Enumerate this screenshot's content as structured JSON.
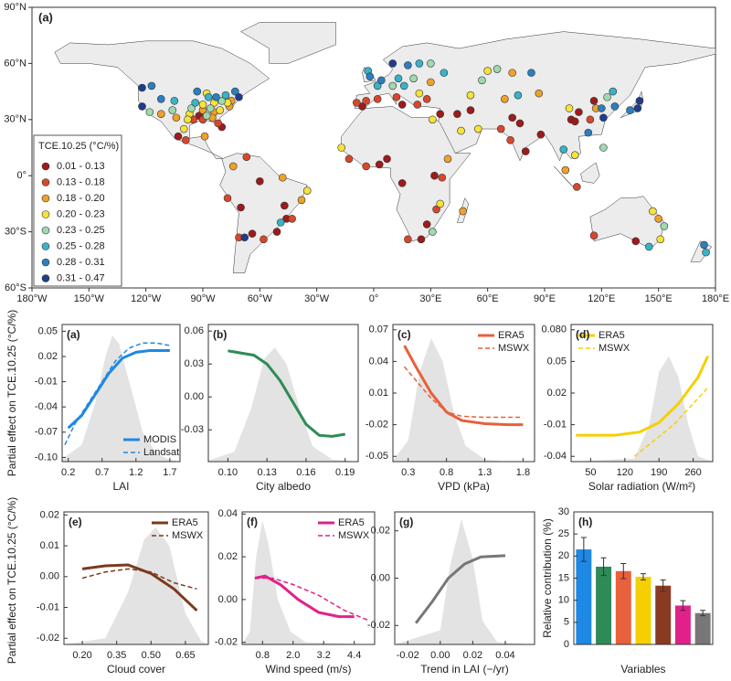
{
  "chart_data": [
    {
      "type": "map",
      "panel_label": "(a)",
      "legend_title": "TCE.10.25 (°C/%)",
      "xlim": [
        -180,
        180
      ],
      "ylim": [
        -60,
        90
      ],
      "xticks": [
        {
          "value": -180,
          "label": "180°W"
        },
        {
          "value": -150,
          "label": "150°W"
        },
        {
          "value": -120,
          "label": "120°W"
        },
        {
          "value": -90,
          "label": "90°W"
        },
        {
          "value": -60,
          "label": "60°W"
        },
        {
          "value": -30,
          "label": "30°W"
        },
        {
          "value": 0,
          "label": "0°"
        },
        {
          "value": 30,
          "label": "30°E"
        },
        {
          "value": 60,
          "label": "60°E"
        },
        {
          "value": 90,
          "label": "90°E"
        },
        {
          "value": 120,
          "label": "120°E"
        },
        {
          "value": 150,
          "label": "150°E"
        },
        {
          "value": 180,
          "label": "180°E"
        }
      ],
      "yticks": [
        {
          "value": 90,
          "label": "90°N"
        },
        {
          "value": 60,
          "label": "60°N"
        },
        {
          "value": 30,
          "label": "30°N"
        },
        {
          "value": 0,
          "label": "0°"
        },
        {
          "value": -30,
          "label": "30°S"
        },
        {
          "value": -60,
          "label": "60°S"
        }
      ],
      "series": [
        {
          "name": "0.01 - 0.13",
          "color": "#9e1b1b",
          "lon": [
            -80,
            -92,
            -103,
            -47,
            -46,
            -51,
            -64,
            -60,
            -70,
            -6,
            15,
            35,
            44,
            51,
            77,
            80,
            88,
            73,
            116,
            104,
            108,
            106,
            3,
            7,
            32,
            28,
            25,
            15,
            138
          ],
          "lat": [
            26,
            32,
            21,
            -16,
            -23,
            -30,
            -31,
            -3,
            -17,
            37,
            38,
            33,
            33,
            35,
            28,
            13,
            22,
            31,
            40,
            30,
            34,
            29,
            6,
            9,
            0,
            -26,
            -34,
            -4,
            -35
          ]
        },
        {
          "name": "0.13 - 0.18",
          "color": "#d9472b",
          "lon": [
            -95,
            -82,
            -90,
            -99,
            -43,
            -58,
            -71,
            -77,
            -67,
            -4,
            2,
            -9,
            12,
            28,
            23,
            67,
            72,
            114,
            107,
            -4,
            36,
            18,
            33,
            -13,
            116
          ],
          "lat": [
            30,
            28,
            30,
            19,
            -23,
            -34,
            -33,
            -12,
            10,
            40,
            41,
            39,
            42,
            41,
            38,
            25,
            19,
            30,
            -6,
            5,
            -1,
            -34,
            -18,
            9,
            -32
          ]
        },
        {
          "name": "0.18 - 0.20",
          "color": "#f0a12a",
          "lon": [
            -75,
            -84,
            -90,
            -85,
            -76,
            -112,
            -104,
            -89,
            -74,
            -38,
            -48,
            30,
            69,
            73,
            117,
            87,
            101,
            39,
            47,
            150
          ],
          "lat": [
            40,
            34,
            35,
            31,
            37,
            33,
            31,
            21,
            5,
            -13,
            -1,
            50,
            41,
            55,
            36,
            44,
            3,
            9,
            -19,
            -23
          ]
        },
        {
          "name": "0.20 - 0.23",
          "color": "#f7e23b",
          "lon": [
            -77,
            -84,
            -90,
            -81,
            -97,
            -98,
            -88,
            -100,
            -35,
            24,
            46,
            55,
            60,
            51,
            103,
            106,
            -17,
            31,
            35,
            151,
            147
          ],
          "lat": [
            39,
            39,
            38,
            35,
            33,
            30,
            44,
            25,
            -8,
            44,
            24,
            25,
            56,
            43,
            36,
            11,
            15,
            30,
            -15,
            -34,
            -19
          ]
        },
        {
          "name": "0.23 - 0.25",
          "color": "#9ed9b0",
          "lon": [
            -80,
            -86,
            -96,
            -88,
            -118,
            -106,
            10,
            21,
            30,
            57,
            65,
            123,
            121,
            31,
            153
          ],
          "lat": [
            40,
            36,
            36,
            32,
            34,
            35,
            48,
            52,
            60,
            51,
            57,
            42,
            15,
            -30,
            -27
          ]
        },
        {
          "name": "0.25 - 0.28",
          "color": "#38b3c9",
          "lon": [
            -87,
            -94,
            -78,
            -105,
            -49,
            2,
            13,
            16,
            24,
            37,
            -3,
            76,
            126,
            100,
            145,
            175
          ],
          "lat": [
            42,
            39,
            43,
            40,
            -25,
            48,
            52,
            48,
            60,
            55,
            56,
            43,
            45,
            14,
            -38,
            -41
          ]
        },
        {
          "name": "0.28 - 0.31",
          "color": "#2a7fc1",
          "lon": [
            -93,
            -83,
            -73,
            -117,
            -112,
            4,
            18,
            -2,
            83,
            113,
            127,
            135,
            120,
            174
          ],
          "lat": [
            45,
            42,
            45,
            48,
            41,
            51,
            59,
            53,
            55,
            23,
            37,
            35,
            36,
            -37
          ]
        },
        {
          "name": "0.31 - 0.47",
          "color": "#1f3d8f",
          "lon": [
            -71,
            -122,
            -122,
            -68,
            10,
            121,
            139,
            140
          ],
          "lat": [
            42,
            37,
            47,
            -33,
            60,
            31,
            36,
            40
          ]
        }
      ]
    },
    {
      "type": "line",
      "panel_label": "(a)",
      "ylabel": "Partial effect on TCE.10.25 (°C/%)",
      "xlabel": "LAI",
      "legend_loc": "lower right",
      "xlim": [
        0.11,
        1.85
      ],
      "ylim": [
        -0.105,
        0.058
      ],
      "xticks": [
        0.2,
        0.7,
        1.2,
        1.7
      ],
      "yticks": [
        0.05,
        0.02,
        -0.01,
        -0.04,
        -0.07,
        {
          "value": -0.1,
          "label": "-0.10"
        }
      ],
      "density": {
        "x": [
          0.11,
          0.4,
          0.6,
          0.75,
          0.85,
          0.95,
          1.1,
          1.3,
          1.5,
          1.7,
          1.85
        ],
        "values": [
          -0.102,
          -0.085,
          -0.035,
          0.02,
          0.045,
          0.035,
          -0.01,
          -0.07,
          -0.095,
          -0.103,
          -0.105
        ]
      },
      "series": [
        {
          "name": "MODIS",
          "color": "#1e88e5",
          "x": [
            0.2,
            0.4,
            0.6,
            0.8,
            1.0,
            1.2,
            1.4,
            1.7
          ],
          "values": [
            -0.065,
            -0.05,
            -0.025,
            0.0,
            0.018,
            0.025,
            0.027,
            0.027
          ]
        },
        {
          "name": "Landsat",
          "color": "#1e88e5",
          "dash": true,
          "x": [
            0.15,
            0.3,
            0.5,
            0.7,
            0.9,
            1.1,
            1.3,
            1.5,
            1.7
          ],
          "values": [
            -0.085,
            -0.06,
            -0.035,
            -0.01,
            0.015,
            0.03,
            0.036,
            0.036,
            0.033
          ]
        }
      ]
    },
    {
      "type": "line",
      "panel_label": "(b)",
      "xlabel": "City albedo",
      "xlim": [
        0.085,
        0.2
      ],
      "ylim": [
        -0.059,
        0.066
      ],
      "xticks": [
        {
          "value": 0.1,
          "label": "0.10"
        },
        0.13,
        0.16,
        0.19
      ],
      "yticks": [
        0.06,
        0.03,
        {
          "value": 0,
          "label": "0.00"
        },
        -0.03
      ],
      "density": {
        "x": [
          0.085,
          0.105,
          0.118,
          0.128,
          0.136,
          0.145,
          0.155,
          0.165,
          0.18,
          0.2
        ],
        "values": [
          -0.058,
          -0.05,
          -0.01,
          0.035,
          0.045,
          0.03,
          -0.01,
          -0.045,
          -0.057,
          -0.059
        ]
      },
      "series": [
        {
          "color": "#2e8b57",
          "x": [
            0.1,
            0.12,
            0.13,
            0.14,
            0.15,
            0.16,
            0.17,
            0.18,
            0.19
          ],
          "values": [
            0.042,
            0.038,
            0.03,
            0.015,
            -0.005,
            -0.025,
            -0.035,
            -0.036,
            -0.034
          ]
        }
      ]
    },
    {
      "type": "line",
      "panel_label": "(c)",
      "xlabel": "VPD (kPa)",
      "legend_loc": "upper right",
      "xlim": [
        0.1,
        1.95
      ],
      "ylim": [
        -0.055,
        0.075
      ],
      "xticks": [
        0.3,
        0.8,
        1.3,
        1.8
      ],
      "yticks": [
        0.07,
        0.04,
        0.01,
        -0.02,
        -0.05
      ],
      "density": {
        "x": [
          0.1,
          0.3,
          0.45,
          0.6,
          0.75,
          0.9,
          1.05,
          1.3,
          1.6,
          1.95
        ],
        "values": [
          -0.054,
          -0.035,
          0.03,
          0.062,
          0.04,
          -0.01,
          -0.04,
          -0.053,
          -0.055,
          -0.055
        ]
      },
      "series": [
        {
          "name": "ERA5",
          "color": "#e8603c",
          "x": [
            0.25,
            0.4,
            0.6,
            0.8,
            1.0,
            1.3,
            1.6,
            1.8
          ],
          "values": [
            0.055,
            0.035,
            0.01,
            -0.008,
            -0.016,
            -0.019,
            -0.02,
            -0.02
          ]
        },
        {
          "name": "MSWX",
          "color": "#e8603c",
          "dash": true,
          "x": [
            0.25,
            0.4,
            0.6,
            0.8,
            1.0,
            1.3,
            1.8
          ],
          "values": [
            0.035,
            0.022,
            0.005,
            -0.008,
            -0.012,
            -0.013,
            -0.013
          ]
        }
      ]
    },
    {
      "type": "line",
      "panel_label": "(d)",
      "xlabel": "Solar radiation (W/m²)",
      "legend_loc": "upper left",
      "xlim": [
        10,
        300
      ],
      "ylim": [
        -0.045,
        0.085
      ],
      "xticks": [
        50,
        120,
        190,
        260
      ],
      "yticks": [
        {
          "value": 0.08,
          "label": "0.080"
        },
        0.05,
        0.02,
        -0.01,
        -0.04
      ],
      "density": {
        "x": [
          10,
          140,
          170,
          190,
          210,
          230,
          250,
          270,
          300
        ],
        "values": [
          -0.045,
          -0.042,
          -0.01,
          0.04,
          0.055,
          0.035,
          -0.01,
          -0.04,
          -0.045
        ]
      },
      "series": [
        {
          "name": "ERA5",
          "color": "#f5d000",
          "x": [
            20,
            100,
            150,
            190,
            230,
            270,
            290
          ],
          "values": [
            -0.02,
            -0.02,
            -0.017,
            -0.008,
            0.01,
            0.035,
            0.055
          ]
        },
        {
          "name": "MSWX",
          "color": "#f5d000",
          "dash": true,
          "x": [
            140,
            180,
            220,
            260,
            290
          ],
          "values": [
            -0.04,
            -0.025,
            -0.01,
            0.01,
            0.025
          ]
        }
      ]
    },
    {
      "type": "line",
      "panel_label": "(e)",
      "ylabel": "Partial effect on TCE.10.25 (°C/%)",
      "xlabel": "Cloud cover",
      "legend_loc": "upper right",
      "xlim": [
        0.12,
        0.75
      ],
      "ylim": [
        -0.022,
        0.021
      ],
      "xticks": [
        {
          "value": 0.2,
          "label": "0.20"
        },
        0.35,
        {
          "value": 0.5,
          "label": "0.50"
        },
        0.65
      ],
      "yticks": [
        0.02,
        0.01,
        {
          "value": 0,
          "label": "0.00"
        },
        -0.01,
        -0.02
      ],
      "density": {
        "x": [
          0.12,
          0.3,
          0.4,
          0.47,
          0.52,
          0.58,
          0.65,
          0.72,
          0.75
        ],
        "values": [
          -0.022,
          -0.02,
          -0.005,
          0.012,
          0.016,
          0.01,
          -0.012,
          -0.021,
          -0.022
        ]
      },
      "series": [
        {
          "name": "ERA5",
          "color": "#7b3a1e",
          "x": [
            0.2,
            0.3,
            0.4,
            0.5,
            0.6,
            0.7
          ],
          "values": [
            0.0025,
            0.0035,
            0.0038,
            0.001,
            -0.004,
            -0.011
          ]
        },
        {
          "name": "MSWX",
          "color": "#7b3a1e",
          "dash": true,
          "x": [
            0.2,
            0.3,
            0.4,
            0.5,
            0.6,
            0.7
          ],
          "values": [
            -0.0005,
            0.0015,
            0.0025,
            0.0015,
            -0.002,
            -0.004
          ]
        }
      ]
    },
    {
      "type": "line",
      "panel_label": "(f)",
      "xlabel": "Wind speed (m/s)",
      "legend_loc": "upper right",
      "xlim": [
        0,
        5.2
      ],
      "ylim": [
        -0.021,
        0.041
      ],
      "xticks": [
        0.8,
        {
          "value": 2,
          "label": "2.0"
        },
        3.2,
        4.4
      ],
      "yticks": [
        0.04,
        0.02,
        {
          "value": 0,
          "label": "0.00"
        },
        -0.02
      ],
      "density": {
        "x": [
          0,
          0.3,
          0.55,
          0.8,
          1.05,
          1.4,
          1.9,
          2.5,
          5.2
        ],
        "values": [
          -0.021,
          -0.015,
          0.02,
          0.037,
          0.025,
          0.0,
          -0.015,
          -0.02,
          -0.021
        ]
      },
      "series": [
        {
          "name": "ERA5",
          "color": "#e0218a",
          "x": [
            0.5,
            0.9,
            1.5,
            2.2,
            3.0,
            3.8,
            4.4
          ],
          "values": [
            0.01,
            0.011,
            0.007,
            0.0,
            -0.006,
            -0.008,
            -0.008
          ]
        },
        {
          "name": "MSWX",
          "color": "#e0218a",
          "dash": true,
          "x": [
            0.5,
            1.2,
            2.0,
            3.0,
            4.0,
            5.0
          ],
          "values": [
            0.01,
            0.01,
            0.007,
            0.002,
            -0.005,
            -0.01
          ]
        }
      ]
    },
    {
      "type": "line",
      "panel_label": "(g)",
      "xlabel": "Trend in LAI (−/yr)",
      "xlim": [
        -0.028,
        0.058
      ],
      "ylim": [
        -0.028,
        0.028
      ],
      "xticks": [
        -0.02,
        {
          "value": 0,
          "label": "0.00"
        },
        0.02,
        0.04
      ],
      "yticks": [
        0.02,
        {
          "value": 0,
          "label": "0.00"
        },
        -0.02
      ],
      "density": {
        "x": [
          -0.028,
          0.0,
          0.006,
          0.013,
          0.02,
          0.026,
          0.035,
          0.058
        ],
        "values": [
          -0.028,
          -0.022,
          0.005,
          0.025,
          0.008,
          -0.018,
          -0.027,
          -0.028
        ]
      },
      "series": [
        {
          "color": "#777777",
          "x": [
            -0.015,
            -0.005,
            0.005,
            0.015,
            0.025,
            0.04
          ],
          "values": [
            -0.019,
            -0.01,
            0.0,
            0.006,
            0.009,
            0.0095
          ]
        }
      ]
    },
    {
      "type": "bar",
      "panel_label": "(h)",
      "xlabel": "Variables",
      "ylabel": "Relative contribution (%)",
      "ylim": [
        0,
        30
      ],
      "yticks": [
        0,
        5,
        10,
        15,
        20,
        25,
        30
      ],
      "categories": [
        null,
        null,
        null,
        null,
        null,
        null,
        null
      ],
      "values": [
        21.5,
        17.6,
        16.6,
        15.3,
        13.3,
        8.8,
        7.1
      ],
      "errors": [
        2.7,
        2.0,
        1.7,
        0.7,
        1.3,
        1.1,
        0.6
      ],
      "colors": [
        "#1e88e5",
        "#2e8b57",
        "#e8603c",
        "#f5d000",
        "#8b3a22",
        "#e0218a",
        "#777777"
      ]
    }
  ]
}
